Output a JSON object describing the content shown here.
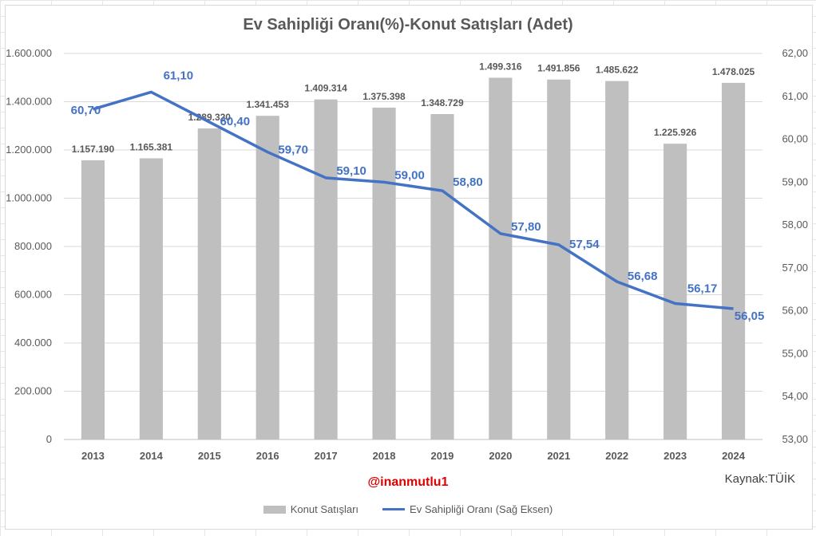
{
  "title": "Ev Sahipliği Oranı(%)-Konut Satışları (Adet)",
  "watermark": "@inanmutlu1",
  "source": "Kaynak:TÜİK",
  "colors": {
    "bar": "#bfbfbf",
    "line": "#4472c4",
    "text": "#595959"
  },
  "chart_data": {
    "type": "bar",
    "title": "Ev Sahipliği Oranı(%)-Konut Satışları (Adet)",
    "categories": [
      "2013",
      "2014",
      "2015",
      "2016",
      "2017",
      "2018",
      "2019",
      "2020",
      "2021",
      "2022",
      "2023",
      "2024"
    ],
    "series": [
      {
        "name": "Konut Satışları",
        "type": "bar",
        "axis": "left",
        "values": [
          1157190,
          1165381,
          1289320,
          1341453,
          1409314,
          1375398,
          1348729,
          1499316,
          1491856,
          1485622,
          1225926,
          1478025
        ],
        "labels": [
          "1.157.190",
          "1.165.381",
          "1.289.320",
          "1.341.453",
          "1.409.314",
          "1.375.398",
          "1.348.729",
          "1.499.316",
          "1.491.856",
          "1.485.622",
          "1.225.926",
          "1.478.025"
        ]
      },
      {
        "name": "Ev Sahipliği Oranı (Sağ Eksen)",
        "type": "line",
        "axis": "right",
        "values": [
          60.7,
          61.1,
          60.4,
          59.7,
          59.1,
          59.0,
          58.8,
          57.8,
          57.54,
          56.68,
          56.17,
          56.05
        ],
        "labels": [
          "60,70",
          "61,10",
          "60,40",
          "59,70",
          "59,10",
          "59,00",
          "58,80",
          "57,80",
          "57,54",
          "56,68",
          "56,17",
          "56,05"
        ]
      }
    ],
    "y_left": {
      "range": [
        0,
        1600000
      ],
      "ticks": [
        "0",
        "200.000",
        "400.000",
        "600.000",
        "800.000",
        "1.000.000",
        "1.200.000",
        "1.400.000",
        "1.600.000"
      ]
    },
    "y_right": {
      "range": [
        53,
        62
      ],
      "ticks": [
        "53,00",
        "54,00",
        "55,00",
        "56,00",
        "57,00",
        "58,00",
        "59,00",
        "60,00",
        "61,00",
        "62,00"
      ]
    },
    "grid": true,
    "legend": "bottom"
  },
  "legend": {
    "bar_label": "Konut Satışları",
    "line_label": "Ev Sahipliği Oranı (Sağ Eksen)"
  }
}
